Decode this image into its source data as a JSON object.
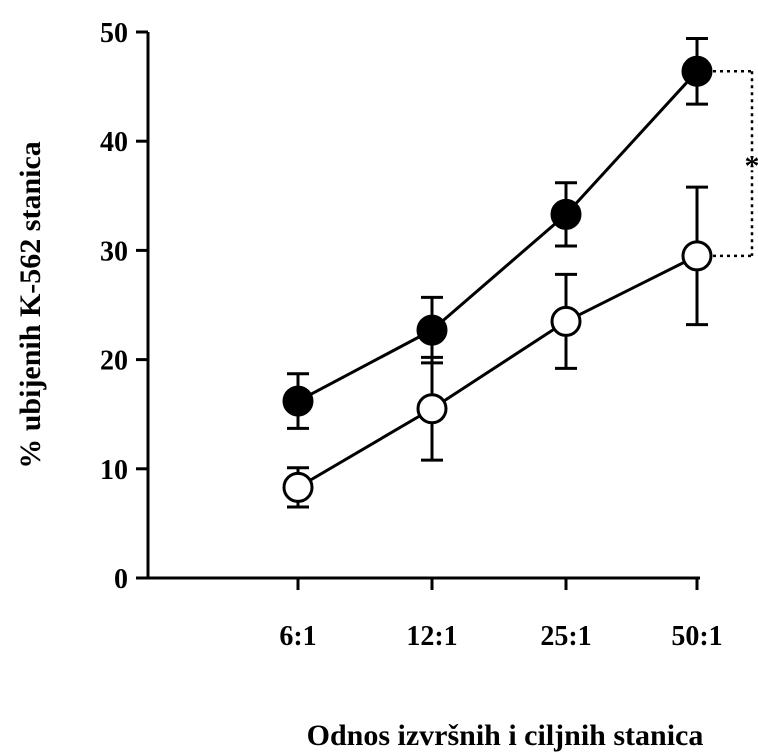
{
  "chart_data": {
    "type": "line",
    "title": "",
    "xlabel": "Odnos izvršnih i ciljnih stanica",
    "ylabel": "% ubijenih K-562 stanica",
    "categories": [
      "6:1",
      "12:1",
      "25:1",
      "50:1"
    ],
    "ylim": [
      0,
      50
    ],
    "yticks": [
      0,
      10,
      20,
      30,
      40,
      50
    ],
    "grid": false,
    "legend": "none",
    "series": [
      {
        "style": "filled",
        "color": "#000000",
        "values": [
          16.2,
          22.7,
          33.3,
          46.4
        ],
        "errors": [
          2.5,
          3.0,
          2.9,
          3.0
        ]
      },
      {
        "style": "open",
        "color": "#000000",
        "values": [
          8.3,
          15.5,
          23.5,
          29.5
        ],
        "errors": [
          1.8,
          4.7,
          4.3,
          6.3
        ]
      }
    ],
    "significance": {
      "label": "*",
      "category": "50:1"
    }
  }
}
